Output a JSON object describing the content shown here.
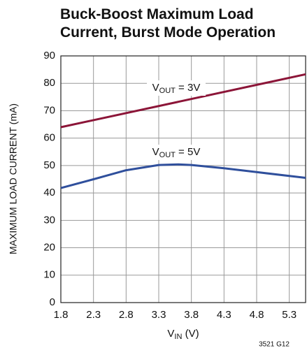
{
  "chart_data": {
    "type": "line",
    "title": [
      "Buck-Boost Maximum Load",
      "Current, Burst Mode Operation"
    ],
    "y_label": "MAXIMUM LOAD CURRENT (mA)",
    "x_label": {
      "base": "V",
      "sub": "IN",
      "rest": " (V)"
    },
    "footnote": "3521 G12",
    "xlim": [
      1.8,
      5.55
    ],
    "xticks": [
      1.8,
      2.3,
      2.8,
      3.3,
      3.8,
      4.3,
      4.8,
      5.3
    ],
    "ylim": [
      0,
      90
    ],
    "yticks": [
      0,
      10,
      20,
      30,
      40,
      50,
      60,
      70,
      80,
      90
    ],
    "grid": true,
    "series": [
      {
        "color": "#8c1538",
        "x": [
          1.8,
          5.55
        ],
        "values": [
          64,
          83.3
        ]
      },
      {
        "color": "#2f4f9c",
        "x": [
          1.8,
          2.3,
          2.8,
          3.3,
          3.6,
          3.8,
          4.3,
          4.8,
          5.55
        ],
        "values": [
          41.8,
          45,
          48.3,
          50.2,
          50.4,
          50.2,
          49,
          47.6,
          45.5
        ]
      }
    ],
    "annotations": [
      {
        "base": "V",
        "sub": "OUT",
        "rest": " = 3V"
      },
      {
        "base": "V",
        "sub": "OUT",
        "rest": " = 5V"
      }
    ]
  }
}
